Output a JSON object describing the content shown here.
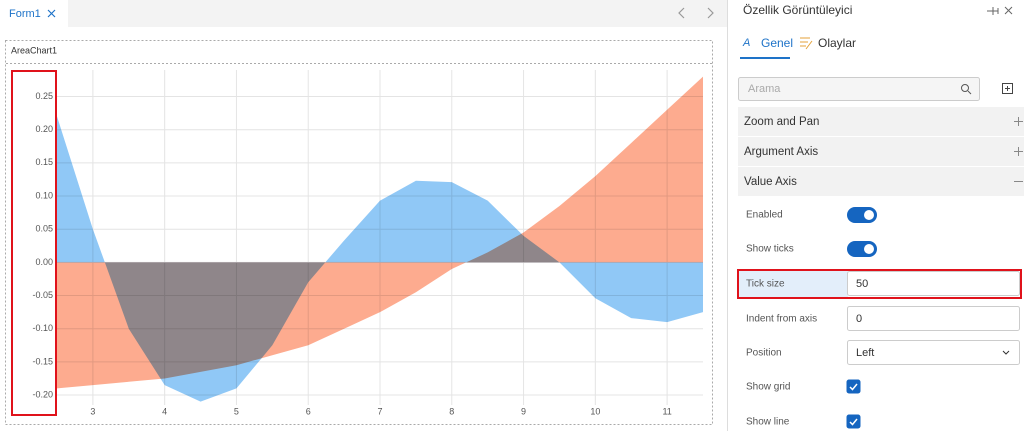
{
  "tabs": {
    "document": "Form1"
  },
  "chart_control": "AreaChart1",
  "chart_data": {
    "type": "area",
    "x": [
      2.5,
      3,
      3.5,
      4,
      4.5,
      5,
      5.5,
      6,
      6.5,
      7,
      7.5,
      8,
      8.5,
      9,
      9.5,
      10,
      10.5,
      11,
      11.5
    ],
    "series": [
      {
        "color": "#fdab8f",
        "values": [
          -0.19,
          -0.185,
          -0.18,
          -0.175,
          -0.165,
          -0.155,
          -0.14,
          -0.125,
          -0.1,
          -0.075,
          -0.045,
          -0.01,
          0.015,
          0.045,
          0.085,
          0.13,
          0.18,
          0.23,
          0.28
        ]
      },
      {
        "color": "#90c8f6",
        "values": [
          0.22,
          0.05,
          -0.1,
          -0.185,
          -0.21,
          -0.19,
          -0.125,
          -0.03,
          0.033,
          0.093,
          0.123,
          0.121,
          0.093,
          0.04,
          0,
          -0.054,
          -0.084,
          -0.09,
          -0.075
        ]
      }
    ],
    "xlim": [
      2.5,
      11.5
    ],
    "xticks": [
      3,
      4,
      5,
      6,
      7,
      8,
      9,
      10,
      11
    ],
    "ylim": [
      -0.215,
      0.29
    ],
    "yticks": [
      {
        "value": -0.2,
        "label": "-0.20"
      },
      -0.15,
      {
        "value": -0.1,
        "label": "-0.10"
      },
      -0.05,
      {
        "value": 0,
        "label": "0.00"
      },
      0.05,
      {
        "value": 0.1,
        "label": "0.10"
      },
      0.15,
      {
        "value": 0.2,
        "label": "0.20"
      },
      0.25
    ],
    "grid": true
  },
  "panel": {
    "title": "Özellik Görüntüleyici",
    "tabs": [
      "Genel",
      "Olaylar"
    ],
    "search_placeholder": "Arama",
    "sections": [
      {
        "name": "Zoom and Pan",
        "expanded": false
      },
      {
        "name": "Argument Axis",
        "expanded": false
      },
      {
        "name": "Value Axis",
        "expanded": true
      }
    ],
    "properties": [
      {
        "label": "Enabled",
        "control": "toggle",
        "value": true
      },
      {
        "label": "Show ticks",
        "control": "toggle",
        "value": true
      },
      {
        "label": "Tick size",
        "control": "input",
        "value": 50
      },
      {
        "label": "Indent from axis",
        "control": "input",
        "value": 0
      },
      {
        "label": "Position",
        "control": "select",
        "value": "Left"
      },
      {
        "label": "Show grid",
        "control": "checkbox",
        "value": true
      },
      {
        "label": "Show line",
        "control": "checkbox",
        "value": true
      }
    ]
  }
}
